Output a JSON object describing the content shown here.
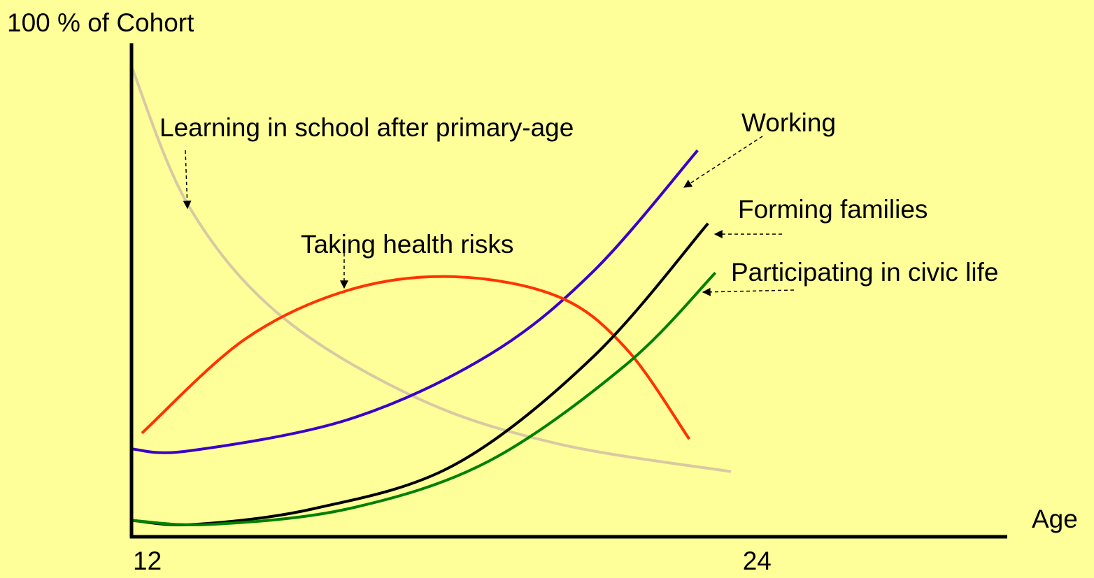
{
  "chart_data": {
    "type": "line",
    "y_label": "100 % of Cohort",
    "x_label": "Age",
    "xlim": [
      12,
      28.8
    ],
    "xticks": [
      12,
      24
    ],
    "ylim": [
      0,
      100
    ],
    "series": [
      {
        "name": "Learning in school after primary-age",
        "color": "#d9c9a3",
        "x": [
          12,
          13.1,
          14.84,
          17.5,
          20.2,
          23.5
        ],
        "values": [
          95.3,
          67,
          45,
          28,
          18.8,
          13.2
        ]
      },
      {
        "name": "Working",
        "color": "#3a00c8",
        "x": [
          12,
          13.1,
          16.17,
          18.85,
          20.86,
          22.86
        ],
        "values": [
          17.8,
          17.4,
          23.8,
          36.8,
          53.8,
          78.3
        ]
      },
      {
        "name": "Taking health risks",
        "color": "#ff3300",
        "x": [
          12.2,
          14.17,
          16.17,
          18.2,
          20.2,
          21.5,
          22.7
        ],
        "values": [
          21,
          40,
          50,
          52.7,
          48.6,
          38,
          19.8
        ]
      },
      {
        "name": "Forming families",
        "color": "#000000",
        "x": [
          12.03,
          13.2,
          15.5,
          18.2,
          20.86,
          23.06
        ],
        "values": [
          3.3,
          2.5,
          5.7,
          14.6,
          36.5,
          63.5
        ]
      },
      {
        "name": "Participating in civic life",
        "color": "#008000",
        "x": [
          12.03,
          13.5,
          16.17,
          18.85,
          21.5,
          23.2
        ],
        "values": [
          3.3,
          2.5,
          5.7,
          15.3,
          35,
          53.5
        ]
      }
    ]
  }
}
